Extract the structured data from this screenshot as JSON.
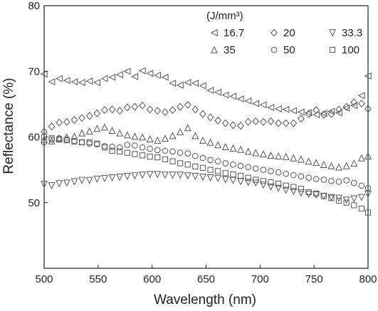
{
  "chart_data": {
    "type": "scatter",
    "xlabel": "Wavelength (nm)",
    "ylabel": "Reflectance (%)",
    "xlim": [
      500,
      800
    ],
    "ylim": [
      40,
      80
    ],
    "xticks": [
      500,
      550,
      600,
      650,
      700,
      750,
      800
    ],
    "yticks": [
      50,
      60,
      70,
      80
    ],
    "grid": false,
    "legend_title": "(J/mm³)",
    "legend_placement": "top-right",
    "marker_color": "#555555",
    "series": [
      {
        "name": "16.7",
        "marker": "triangle-left",
        "x": [
          500,
          507,
          514,
          521,
          528,
          535,
          542,
          549,
          556,
          563,
          570,
          577,
          584,
          591,
          598,
          605,
          612,
          619,
          626,
          633,
          640,
          647,
          654,
          661,
          668,
          675,
          682,
          689,
          696,
          703,
          710,
          717,
          724,
          731,
          738,
          745,
          752,
          759,
          766,
          773,
          780,
          787,
          794,
          800
        ],
        "y": [
          69.6,
          68.4,
          68.9,
          68.6,
          68.4,
          68.3,
          68.5,
          68.3,
          68.9,
          69.1,
          69.5,
          70.0,
          69.2,
          70.1,
          69.7,
          69.4,
          69.1,
          68.2,
          67.9,
          68.3,
          68.2,
          67.8,
          67.1,
          66.8,
          66.4,
          66.2,
          65.8,
          65.5,
          65.1,
          64.9,
          64.5,
          64.3,
          64.2,
          64.0,
          63.8,
          63.7,
          63.4,
          63.6,
          63.9,
          63.7,
          64.4,
          64.8,
          66.3,
          69.3
        ]
      },
      {
        "name": "20",
        "marker": "diamond",
        "x": [
          500,
          507,
          514,
          521,
          528,
          535,
          542,
          549,
          556,
          563,
          570,
          577,
          584,
          591,
          598,
          605,
          612,
          619,
          626,
          633,
          640,
          647,
          654,
          661,
          668,
          675,
          682,
          689,
          696,
          703,
          710,
          717,
          724,
          731,
          738,
          745,
          752,
          759,
          766,
          773,
          780,
          787,
          794,
          800
        ],
        "y": [
          60.8,
          61.6,
          62.2,
          62.3,
          62.6,
          62.9,
          63.2,
          63.6,
          64.1,
          64.2,
          64.0,
          64.5,
          64.6,
          64.8,
          64.2,
          64.0,
          63.8,
          64.1,
          64.6,
          64.9,
          64.2,
          63.5,
          63.0,
          62.5,
          62.1,
          61.8,
          61.7,
          62.3,
          62.4,
          62.3,
          62.4,
          62.1,
          62.1,
          62.1,
          62.8,
          63.5,
          64.1,
          63.4,
          63.5,
          64.2,
          64.6,
          65.3,
          65.1,
          64.3
        ]
      },
      {
        "name": "33.3",
        "marker": "triangle-down",
        "x": [
          500,
          507,
          514,
          521,
          528,
          535,
          542,
          549,
          556,
          563,
          570,
          577,
          584,
          591,
          598,
          605,
          612,
          619,
          626,
          633,
          640,
          647,
          654,
          661,
          668,
          675,
          682,
          689,
          696,
          703,
          710,
          717,
          724,
          731,
          738,
          745,
          752,
          759,
          766,
          773,
          780,
          787,
          794,
          800
        ],
        "y": [
          52.8,
          52.6,
          52.9,
          53.0,
          53.2,
          53.4,
          53.4,
          53.6,
          53.7,
          53.8,
          53.9,
          54.0,
          54.1,
          54.2,
          54.3,
          54.3,
          54.2,
          54.2,
          54.2,
          54.1,
          54.0,
          53.9,
          53.8,
          53.7,
          53.5,
          53.4,
          53.2,
          53.1,
          53.0,
          52.7,
          52.4,
          52.2,
          51.9,
          51.7,
          51.5,
          51.3,
          51.2,
          51.0,
          50.8,
          50.7,
          50.4,
          50.6,
          50.8,
          51.3
        ]
      },
      {
        "name": "35",
        "marker": "triangle-up",
        "x": [
          500,
          507,
          514,
          521,
          528,
          535,
          542,
          549,
          556,
          563,
          570,
          577,
          584,
          591,
          598,
          605,
          612,
          619,
          626,
          633,
          640,
          647,
          654,
          661,
          668,
          675,
          682,
          689,
          696,
          703,
          710,
          717,
          724,
          731,
          738,
          745,
          752,
          759,
          766,
          773,
          780,
          787,
          794,
          800
        ],
        "y": [
          59.6,
          59.4,
          59.8,
          60.0,
          60.1,
          60.6,
          60.9,
          61.3,
          61.5,
          61.0,
          60.6,
          60.3,
          60.1,
          60.0,
          59.7,
          59.5,
          59.8,
          60.2,
          60.8,
          61.4,
          60.2,
          59.5,
          59.2,
          58.8,
          58.5,
          58.3,
          58.1,
          57.8,
          57.6,
          57.4,
          57.2,
          57.1,
          57.0,
          56.8,
          56.6,
          56.3,
          56.1,
          55.8,
          55.6,
          55.4,
          55.6,
          56.0,
          56.8,
          57.1
        ]
      },
      {
        "name": "50",
        "marker": "circle",
        "x": [
          500,
          507,
          514,
          521,
          528,
          535,
          542,
          549,
          556,
          563,
          570,
          577,
          584,
          591,
          598,
          605,
          612,
          619,
          626,
          633,
          640,
          647,
          654,
          661,
          668,
          675,
          682,
          689,
          696,
          703,
          710,
          717,
          724,
          731,
          738,
          745,
          752,
          759,
          766,
          773,
          780,
          787,
          794,
          800
        ],
        "y": [
          59.2,
          59.6,
          59.8,
          59.6,
          59.4,
          59.2,
          59.0,
          58.9,
          58.6,
          58.5,
          58.4,
          58.8,
          58.7,
          58.4,
          58.2,
          58.0,
          57.9,
          57.8,
          57.6,
          57.5,
          57.1,
          56.8,
          56.5,
          56.3,
          56.0,
          55.8,
          55.6,
          55.4,
          55.2,
          55.0,
          54.8,
          54.6,
          54.4,
          54.2,
          54.0,
          53.8,
          53.6,
          53.5,
          53.3,
          53.2,
          53.4,
          53.0,
          52.6,
          52.2
        ]
      },
      {
        "name": "100",
        "marker": "square",
        "x": [
          500,
          507,
          514,
          521,
          528,
          535,
          542,
          549,
          556,
          563,
          570,
          577,
          584,
          591,
          598,
          605,
          612,
          619,
          626,
          633,
          640,
          647,
          654,
          661,
          668,
          675,
          682,
          689,
          696,
          703,
          710,
          717,
          724,
          731,
          738,
          745,
          752,
          759,
          766,
          773,
          780,
          787,
          794,
          800
        ],
        "y": [
          60.0,
          59.8,
          59.6,
          59.5,
          59.3,
          59.2,
          59.2,
          59.0,
          58.4,
          57.9,
          57.8,
          57.6,
          57.4,
          57.2,
          57.0,
          56.9,
          56.6,
          56.3,
          56.0,
          55.8,
          55.5,
          55.3,
          55.0,
          54.8,
          54.5,
          54.3,
          54.1,
          53.8,
          53.5,
          53.3,
          53.1,
          52.9,
          52.6,
          52.4,
          52.1,
          51.6,
          51.4,
          51.0,
          50.7,
          50.3,
          50.0,
          49.6,
          49.1,
          48.5
        ]
      }
    ]
  }
}
